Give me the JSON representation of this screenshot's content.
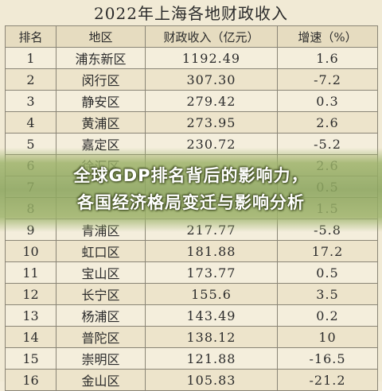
{
  "doc": {
    "title": "2022年上海各地财政收入",
    "headers": [
      "排名",
      "地区",
      "财政收入（亿元）",
      "增速（%）"
    ],
    "rows": [
      [
        "1",
        "浦东新区",
        "1192.49",
        "1.6"
      ],
      [
        "2",
        "闵行区",
        "307.30",
        "-7.2"
      ],
      [
        "3",
        "静安区",
        "279.42",
        "0.3"
      ],
      [
        "4",
        "黄浦区",
        "273.95",
        "2.6"
      ],
      [
        "5",
        "嘉定区",
        "230.72",
        "-5.2"
      ],
      [
        "6",
        "徐汇区",
        "",
        "2.6"
      ],
      [
        "7",
        "",
        "",
        "0.5"
      ],
      [
        "8",
        "",
        "",
        "1.5"
      ],
      [
        "9",
        "青浦区",
        "217.77",
        "-5.8"
      ],
      [
        "10",
        "虹口区",
        "181.88",
        "17.2"
      ],
      [
        "11",
        "宝山区",
        "173.77",
        "0.5"
      ],
      [
        "12",
        "长宁区",
        "155.6",
        "3.5"
      ],
      [
        "13",
        "杨浦区",
        "143.49",
        "0.2"
      ],
      [
        "14",
        "普陀区",
        "138.12",
        "10"
      ],
      [
        "15",
        "崇明区",
        "121.88",
        "-16.5"
      ],
      [
        "16",
        "金山区",
        "105.83",
        "-21.2"
      ]
    ]
  },
  "overlay": {
    "line1": "全球GDP排名背后的影响力，",
    "line2": "各国经济格局变迁与影响分析"
  }
}
